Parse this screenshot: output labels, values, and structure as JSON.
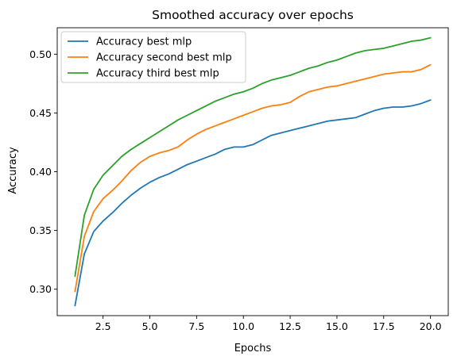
{
  "chart_data": {
    "type": "line",
    "title": "Smoothed accuracy over epochs",
    "xlabel": "Epochs",
    "ylabel": "Accuracy",
    "xlim": [
      0.05,
      20.95
    ],
    "ylim": [
      0.2775,
      0.5225
    ],
    "xticks": [
      2.5,
      5.0,
      7.5,
      10.0,
      12.5,
      15.0,
      17.5,
      20.0
    ],
    "xtick_labels": [
      "2.5",
      "5.0",
      "7.5",
      "10.0",
      "12.5",
      "15.0",
      "17.5",
      "20.0"
    ],
    "yticks": [
      0.3,
      0.35,
      0.4,
      0.45,
      0.5
    ],
    "ytick_labels": [
      "0.30",
      "0.35",
      "0.40",
      "0.45",
      "0.50"
    ],
    "grid": false,
    "legend_position": "top-left",
    "x": [
      1,
      1.5,
      2,
      2.5,
      3,
      3.5,
      4,
      4.5,
      5,
      5.5,
      6,
      6.5,
      7,
      7.5,
      8,
      8.5,
      9,
      9.5,
      10,
      10.5,
      11,
      11.5,
      12,
      12.5,
      13,
      13.5,
      14,
      14.5,
      15,
      15.5,
      16,
      16.5,
      17,
      17.5,
      18,
      18.5,
      19,
      19.5,
      20
    ],
    "series": [
      {
        "name": "Accuracy best mlp",
        "color": "#1f77b4",
        "values": [
          0.286,
          0.33,
          0.349,
          0.358,
          0.365,
          0.373,
          0.38,
          0.386,
          0.391,
          0.395,
          0.398,
          0.402,
          0.406,
          0.409,
          0.412,
          0.415,
          0.419,
          0.421,
          0.421,
          0.423,
          0.427,
          0.431,
          0.433,
          0.435,
          0.437,
          0.439,
          0.441,
          0.443,
          0.444,
          0.445,
          0.446,
          0.449,
          0.452,
          0.454,
          0.455,
          0.455,
          0.456,
          0.458,
          0.461
        ]
      },
      {
        "name": "Accuracy second best mlp",
        "color": "#ff7f0e",
        "values": [
          0.298,
          0.345,
          0.366,
          0.377,
          0.384,
          0.392,
          0.401,
          0.408,
          0.413,
          0.416,
          0.418,
          0.421,
          0.427,
          0.432,
          0.436,
          0.439,
          0.442,
          0.445,
          0.448,
          0.451,
          0.454,
          0.456,
          0.457,
          0.459,
          0.464,
          0.468,
          0.47,
          0.472,
          0.473,
          0.475,
          0.477,
          0.479,
          0.481,
          0.483,
          0.484,
          0.485,
          0.485,
          0.487,
          0.491
        ]
      },
      {
        "name": "Accuracy third best mlp",
        "color": "#2ca02c",
        "values": [
          0.311,
          0.363,
          0.385,
          0.397,
          0.405,
          0.413,
          0.419,
          0.424,
          0.429,
          0.434,
          0.439,
          0.444,
          0.448,
          0.452,
          0.456,
          0.46,
          0.463,
          0.466,
          0.468,
          0.471,
          0.475,
          0.478,
          0.48,
          0.482,
          0.485,
          0.488,
          0.49,
          0.493,
          0.495,
          0.498,
          0.501,
          0.503,
          0.504,
          0.505,
          0.507,
          0.509,
          0.511,
          0.512,
          0.514
        ]
      }
    ]
  }
}
